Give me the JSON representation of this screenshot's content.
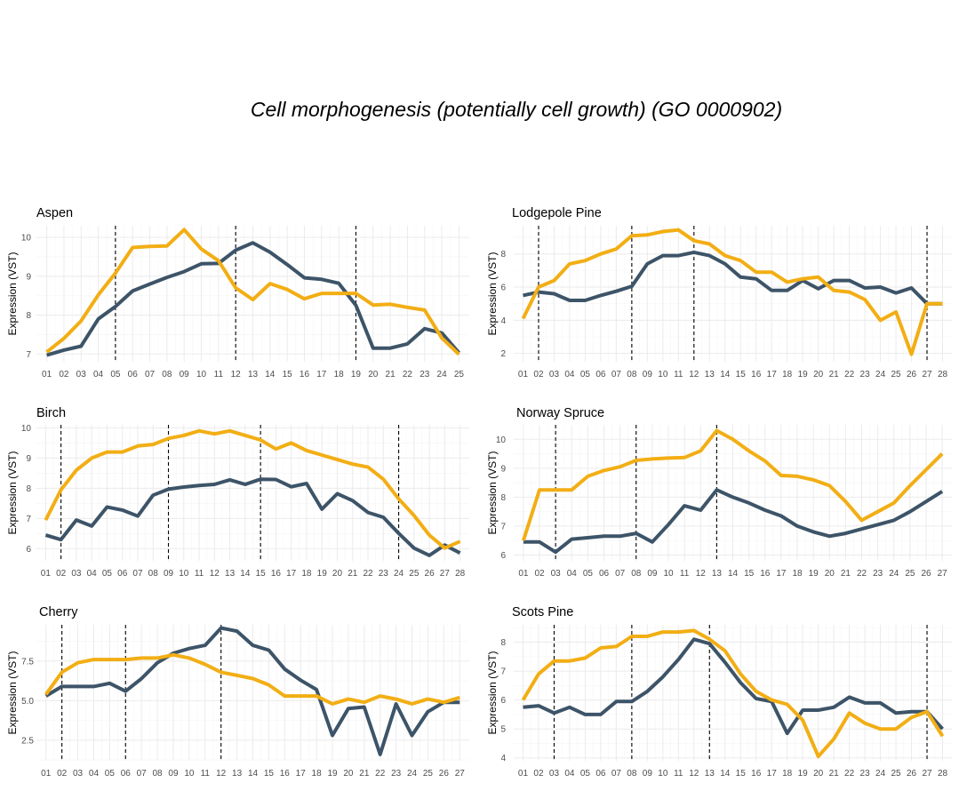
{
  "title": "Cell morphogenesis (potentially cell growth) (GO 0000902)",
  "colors": {
    "series_dark": "#3d5468",
    "series_gold": "#f2ae14"
  },
  "chart_data": [
    {
      "type": "line",
      "title": "Aspen",
      "ylabel": "Expression (VST)",
      "x": [
        "01",
        "02",
        "03",
        "04",
        "05",
        "06",
        "07",
        "08",
        "09",
        "10",
        "11",
        "12",
        "13",
        "14",
        "15",
        "16",
        "17",
        "18",
        "19",
        "20",
        "21",
        "22",
        "23",
        "24",
        "25"
      ],
      "ylim": [
        6.8,
        10.3
      ],
      "yticks": [
        7,
        8,
        9,
        10
      ],
      "ytick_labels": [
        "7",
        "8",
        "9",
        "10"
      ],
      "vlines": [
        "05",
        "12",
        "19"
      ],
      "series": [
        {
          "color": "#3d5468",
          "values": [
            6.97,
            7.1,
            7.2,
            7.9,
            8.22,
            8.62,
            8.8,
            8.97,
            9.12,
            9.32,
            9.33,
            9.67,
            9.86,
            9.62,
            9.3,
            8.96,
            8.92,
            8.82,
            8.25,
            7.15,
            7.15,
            7.26,
            7.65,
            7.54,
            7.03
          ]
        },
        {
          "color": "#f2ae14",
          "values": [
            7.05,
            7.4,
            7.85,
            8.52,
            9.08,
            9.74,
            9.77,
            9.78,
            10.2,
            9.7,
            9.4,
            8.7,
            8.4,
            8.81,
            8.66,
            8.42,
            8.56,
            8.56,
            8.56,
            8.26,
            8.28,
            8.2,
            8.13,
            7.41,
            6.99
          ]
        }
      ]
    },
    {
      "type": "line",
      "title": "Lodgepole Pine",
      "ylabel": "Expression (VST)",
      "x": [
        "01",
        "02",
        "03",
        "04",
        "05",
        "06",
        "07",
        "08",
        "09",
        "10",
        "11",
        "12",
        "13",
        "14",
        "15",
        "16",
        "17",
        "18",
        "19",
        "20",
        "21",
        "22",
        "23",
        "24",
        "25",
        "26",
        "27",
        "28"
      ],
      "ylim": [
        1.5,
        9.7
      ],
      "yticks": [
        2,
        4,
        6,
        8
      ],
      "ytick_labels": [
        "2",
        "4",
        "6",
        "8"
      ],
      "vlines": [
        "02",
        "08",
        "12",
        "27"
      ],
      "series": [
        {
          "color": "#3d5468",
          "values": [
            5.5,
            5.7,
            5.6,
            5.2,
            5.2,
            5.5,
            5.75,
            6.05,
            7.4,
            7.9,
            7.9,
            8.1,
            7.9,
            7.4,
            6.6,
            6.5,
            5.8,
            5.8,
            6.4,
            5.9,
            6.4,
            6.4,
            5.95,
            6.0,
            5.65,
            5.95,
            5.0,
            5.0
          ]
        },
        {
          "color": "#f2ae14",
          "values": [
            4.1,
            6.0,
            6.4,
            7.4,
            7.6,
            8.0,
            8.3,
            9.1,
            9.15,
            9.35,
            9.45,
            8.8,
            8.6,
            7.9,
            7.6,
            6.9,
            6.9,
            6.3,
            6.5,
            6.6,
            5.8,
            5.7,
            5.25,
            4.0,
            4.5,
            1.95,
            5.0,
            5.0
          ]
        }
      ]
    },
    {
      "type": "line",
      "title": "Birch",
      "ylabel": "Expression (VST)",
      "x": [
        "01",
        "02",
        "03",
        "04",
        "05",
        "06",
        "07",
        "08",
        "09",
        "10",
        "11",
        "12",
        "13",
        "14",
        "15",
        "16",
        "17",
        "18",
        "19",
        "20",
        "21",
        "22",
        "23",
        "24",
        "25",
        "26",
        "27",
        "28"
      ],
      "ylim": [
        5.6,
        10.1
      ],
      "yticks": [
        6,
        7,
        8,
        9,
        10
      ],
      "ytick_labels": [
        "6",
        "7",
        "8",
        "9",
        "10"
      ],
      "vlines": [
        "02",
        "09",
        "15",
        "24"
      ],
      "series": [
        {
          "color": "#3d5468",
          "values": [
            6.45,
            6.3,
            6.95,
            6.75,
            7.38,
            7.28,
            7.08,
            7.77,
            7.97,
            8.04,
            8.09,
            8.13,
            8.28,
            8.13,
            8.3,
            8.29,
            8.05,
            8.16,
            7.31,
            7.82,
            7.59,
            7.2,
            7.04,
            6.51,
            6.02,
            5.78,
            6.12,
            5.86
          ]
        },
        {
          "color": "#f2ae14",
          "values": [
            6.95,
            7.95,
            8.6,
            9.0,
            9.2,
            9.2,
            9.4,
            9.45,
            9.65,
            9.75,
            9.9,
            9.8,
            9.9,
            9.75,
            9.6,
            9.3,
            9.5,
            9.25,
            9.1,
            8.95,
            8.8,
            8.7,
            8.3,
            7.65,
            7.1,
            6.45,
            6.02,
            6.24
          ]
        }
      ]
    },
    {
      "type": "line",
      "title": "Norway Spruce",
      "ylabel": "Expression (VST)",
      "x": [
        "01",
        "02",
        "03",
        "04",
        "05",
        "06",
        "07",
        "08",
        "09",
        "10",
        "11",
        "12",
        "13",
        "14",
        "15",
        "16",
        "17",
        "18",
        "19",
        "20",
        "21",
        "22",
        "23",
        "24",
        "25",
        "26",
        "27"
      ],
      "ylim": [
        5.8,
        10.5
      ],
      "yticks": [
        6,
        7,
        8,
        9,
        10
      ],
      "ytick_labels": [
        "6",
        "7",
        "8",
        "9",
        "10"
      ],
      "vlines": [
        "03",
        "08",
        "13"
      ],
      "series": [
        {
          "color": "#3d5468",
          "values": [
            6.45,
            6.45,
            6.1,
            6.55,
            6.6,
            6.65,
            6.65,
            6.75,
            6.45,
            7.05,
            7.7,
            7.55,
            8.25,
            8.0,
            7.8,
            7.55,
            7.35,
            7.0,
            6.8,
            6.65,
            6.75,
            6.9,
            7.05,
            7.2,
            7.5,
            7.85,
            8.2
          ]
        },
        {
          "color": "#f2ae14",
          "values": [
            6.5,
            8.25,
            8.25,
            8.25,
            8.72,
            8.92,
            9.05,
            9.27,
            9.32,
            9.35,
            9.37,
            9.6,
            10.3,
            10.0,
            9.6,
            9.25,
            8.75,
            8.72,
            8.6,
            8.4,
            7.85,
            7.2,
            7.5,
            7.8,
            8.4,
            8.95,
            9.5
          ]
        }
      ]
    },
    {
      "type": "line",
      "title": "Cherry",
      "ylabel": "Expression (VST)",
      "x": [
        "01",
        "02",
        "03",
        "04",
        "05",
        "06",
        "07",
        "08",
        "09",
        "10",
        "11",
        "12",
        "13",
        "14",
        "15",
        "16",
        "17",
        "18",
        "19",
        "20",
        "21",
        "22",
        "23",
        "24",
        "25",
        "26",
        "27"
      ],
      "ylim": [
        1.2,
        9.8
      ],
      "yticks": [
        2.5,
        5.0,
        7.5
      ],
      "ytick_labels": [
        "2.5",
        "5.0",
        "7.5"
      ],
      "vlines": [
        "02",
        "06",
        "12"
      ],
      "series": [
        {
          "color": "#3d5468",
          "values": [
            5.3,
            5.9,
            5.9,
            5.9,
            6.1,
            5.6,
            6.4,
            7.4,
            8.0,
            8.3,
            8.5,
            9.6,
            9.4,
            8.5,
            8.2,
            7.0,
            6.3,
            5.7,
            2.8,
            4.5,
            4.6,
            1.6,
            4.8,
            2.8,
            4.3,
            4.9,
            4.9
          ]
        },
        {
          "color": "#f2ae14",
          "values": [
            5.4,
            6.8,
            7.4,
            7.6,
            7.6,
            7.6,
            7.7,
            7.7,
            7.9,
            7.7,
            7.3,
            6.8,
            6.6,
            6.4,
            6.0,
            5.3,
            5.3,
            5.3,
            4.8,
            5.1,
            4.9,
            5.3,
            5.1,
            4.8,
            5.1,
            4.9,
            5.2
          ]
        }
      ]
    },
    {
      "type": "line",
      "title": "Scots Pine",
      "ylabel": "Expression (VST)",
      "x": [
        "01",
        "02",
        "03",
        "04",
        "05",
        "06",
        "07",
        "08",
        "09",
        "10",
        "11",
        "12",
        "13",
        "14",
        "15",
        "16",
        "17",
        "18",
        "19",
        "20",
        "21",
        "22",
        "23",
        "24",
        "25",
        "26",
        "27",
        "28"
      ],
      "ylim": [
        3.9,
        8.6
      ],
      "yticks": [
        4,
        5,
        6,
        7,
        8
      ],
      "ytick_labels": [
        "4",
        "5",
        "6",
        "7",
        "8"
      ],
      "vlines": [
        "03",
        "08",
        "13",
        "27"
      ],
      "series": [
        {
          "color": "#3d5468",
          "values": [
            5.75,
            5.8,
            5.55,
            5.75,
            5.5,
            5.5,
            5.95,
            5.95,
            6.3,
            6.8,
            7.4,
            8.1,
            7.95,
            7.3,
            6.6,
            6.05,
            5.95,
            4.85,
            5.65,
            5.65,
            5.75,
            6.1,
            5.9,
            5.9,
            5.55,
            5.6,
            5.6,
            5.0
          ]
        },
        {
          "color": "#f2ae14",
          "values": [
            6.0,
            6.9,
            7.35,
            7.35,
            7.45,
            7.8,
            7.85,
            8.2,
            8.2,
            8.35,
            8.35,
            8.4,
            8.1,
            7.7,
            6.9,
            6.3,
            6.0,
            5.85,
            5.3,
            4.05,
            4.65,
            5.55,
            5.2,
            5.0,
            5.0,
            5.4,
            5.6,
            4.75
          ]
        }
      ]
    }
  ]
}
